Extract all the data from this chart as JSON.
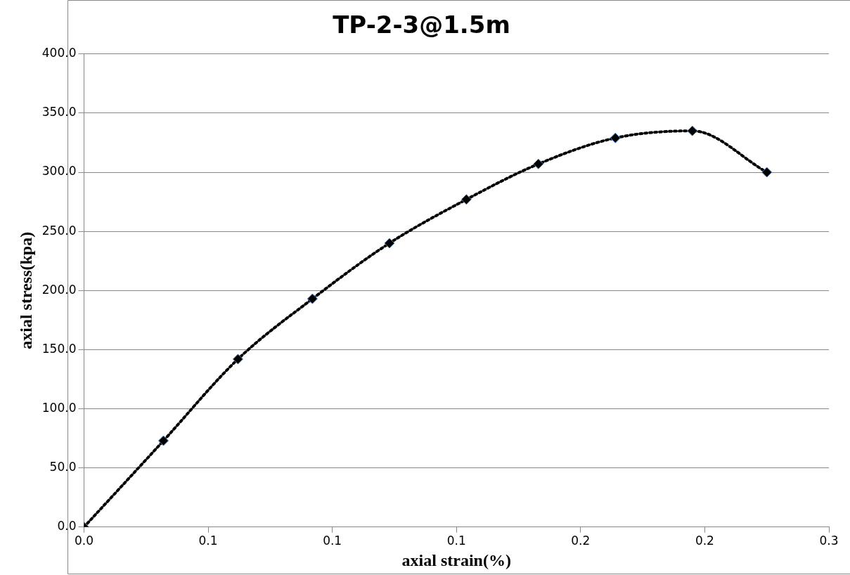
{
  "chart_data": {
    "type": "line",
    "title": "TP-2-3@1.5m",
    "xlabel": "axial strain(%)",
    "ylabel": "axial stress(kpa)",
    "x": [
      0,
      0.032,
      0.062,
      0.092,
      0.123,
      0.154,
      0.183,
      0.214,
      0.245,
      0.275
    ],
    "series": [
      {
        "color": "#000000",
        "values": [
          0,
          73,
          142,
          193,
          240,
          277,
          307,
          329,
          335,
          300
        ]
      }
    ],
    "xlim": [
      0,
      0.3
    ],
    "xticks": [
      {
        "value": 0,
        "label": "0.0"
      },
      {
        "value": 0.05,
        "label": "0.1"
      },
      {
        "value": 0.1,
        "label": "0.1"
      },
      {
        "value": 0.15,
        "label": "0.1"
      },
      {
        "value": 0.2,
        "label": "0.2"
      },
      {
        "value": 0.25,
        "label": "0.2"
      },
      {
        "value": 0.3,
        "label": "0.3"
      }
    ],
    "ylim": [
      0,
      400
    ],
    "yticks": [
      {
        "value": 0,
        "label": "0.0"
      },
      {
        "value": 50,
        "label": "50.0"
      },
      {
        "value": 100,
        "label": "100.0"
      },
      {
        "value": 150,
        "label": "150.0"
      },
      {
        "value": 200,
        "label": "200.0"
      },
      {
        "value": 250,
        "label": "250.0"
      },
      {
        "value": 300,
        "label": "300.0"
      },
      {
        "value": 350,
        "label": "350.0"
      },
      {
        "value": 400,
        "label": "400.0"
      }
    ],
    "grid": "y",
    "legend": false,
    "marker": "diamond",
    "line_style": "dotted"
  }
}
